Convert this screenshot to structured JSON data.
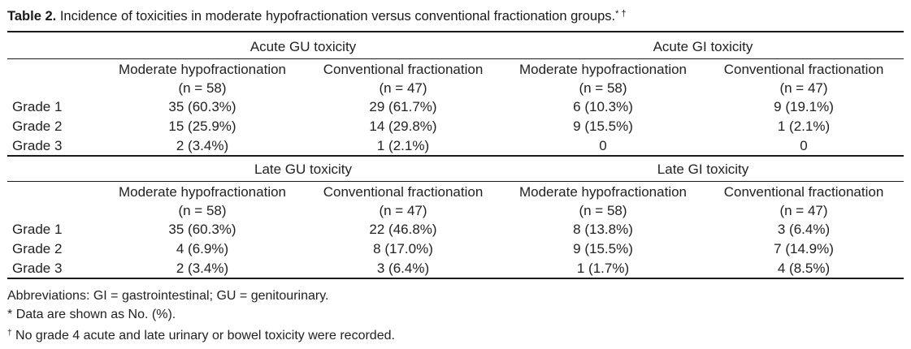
{
  "caption": {
    "label": "Table 2.",
    "text": "Incidence of toxicities in moderate hypofractionation versus conventional fractionation groups.",
    "marks": "* †"
  },
  "sections": [
    {
      "groups": [
        "Acute GU toxicity",
        "Acute GI toxicity"
      ],
      "columns": [
        {
          "name": "Moderate hypofractionation",
          "n": "(n = 58)"
        },
        {
          "name": "Conventional fractionation",
          "n": "(n = 47)"
        },
        {
          "name": "Moderate hypofractionation",
          "n": "(n = 58)"
        },
        {
          "name": "Conventional fractionation",
          "n": "(n = 47)"
        }
      ],
      "rows": [
        {
          "label": "Grade 1",
          "cells": [
            "35 (60.3%)",
            "29 (61.7%)",
            "6 (10.3%)",
            "9 (19.1%)"
          ]
        },
        {
          "label": "Grade 2",
          "cells": [
            "15 (25.9%)",
            "14 (29.8%)",
            "9 (15.5%)",
            "1 (2.1%)"
          ]
        },
        {
          "label": "Grade 3",
          "cells": [
            "2 (3.4%)",
            "1 (2.1%)",
            "0",
            "0"
          ]
        }
      ]
    },
    {
      "groups": [
        "Late GU toxicity",
        "Late GI toxicity"
      ],
      "columns": [
        {
          "name": "Moderate hypofractionation",
          "n": "(n = 58)"
        },
        {
          "name": "Conventional fractionation",
          "n": "(n = 47)"
        },
        {
          "name": "Moderate hypofractionation",
          "n": "(n = 58)"
        },
        {
          "name": "Conventional fractionation",
          "n": "(n = 47)"
        }
      ],
      "rows": [
        {
          "label": "Grade 1",
          "cells": [
            "35 (60.3%)",
            "22 (46.8%)",
            "8 (13.8%)",
            "3 (6.4%)"
          ]
        },
        {
          "label": "Grade 2",
          "cells": [
            "4 (6.9%)",
            "8 (17.0%)",
            "9 (15.5%)",
            "7 (14.9%)"
          ]
        },
        {
          "label": "Grade 3",
          "cells": [
            "2 (3.4%)",
            "3 (6.4%)",
            "1 (1.7%)",
            "4 (8.5%)"
          ]
        }
      ]
    }
  ],
  "footnotes": {
    "abbreviations": "Abbreviations: GI = gastrointestinal; GU = genitourinary.",
    "star_mark": "*",
    "star_text": "Data are shown as No. (%).",
    "dagger_mark": "†",
    "dagger_text": "No grade 4 acute and late urinary or bowel toxicity were recorded."
  }
}
